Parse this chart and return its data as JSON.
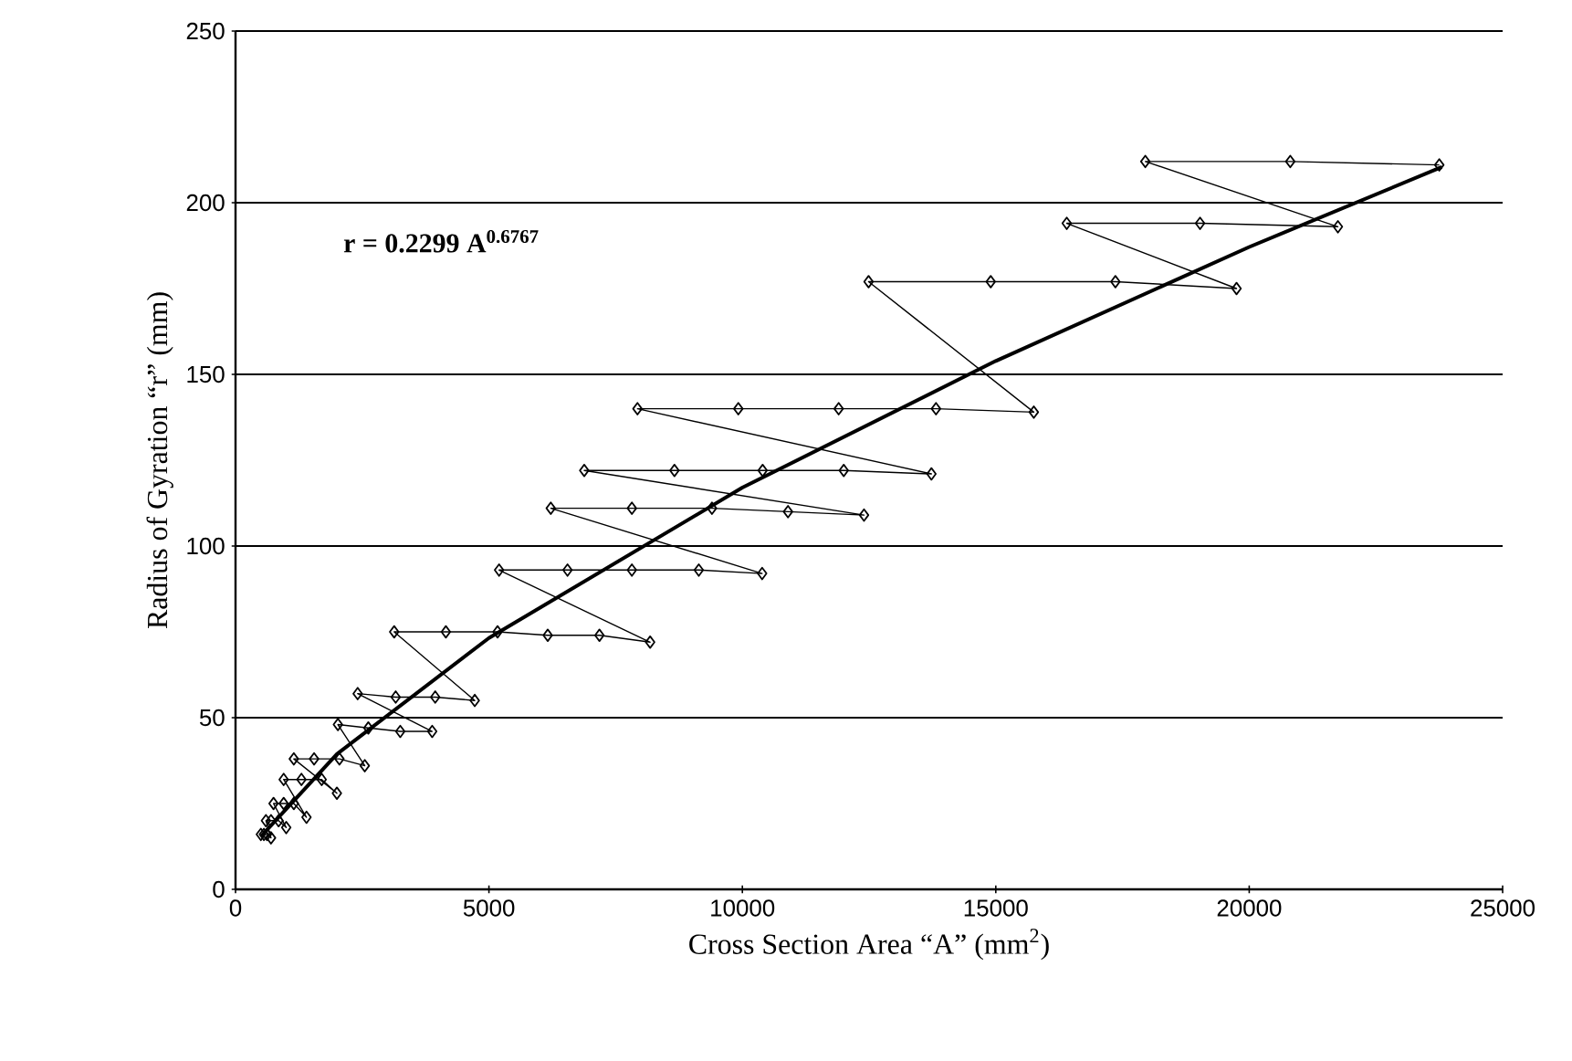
{
  "chart_data": {
    "type": "line",
    "xlabel": "Cross Section Area “A” (mm$^{2}$)",
    "ylabel": "Radius of Gyration “r” (mm)",
    "annotations": [
      "r = 0.2299 A$^{0.6767}$"
    ],
    "xlim": [
      0,
      25000
    ],
    "xticks": [
      0,
      5000,
      10000,
      15000,
      20000,
      25000
    ],
    "ylim": [
      0,
      250
    ],
    "yticks": [
      0,
      50,
      100,
      150,
      200,
      250
    ],
    "grid": "y",
    "marker": "diamond",
    "series": [
      {
        "color": "#000000",
        "x": [
          500,
          560,
          620,
          700,
          600,
          700,
          850,
          1000,
          750,
          950,
          1150,
          1400,
          950,
          1300,
          1700,
          2000,
          1150,
          1550,
          2050,
          2550,
          2020,
          2620,
          3250,
          3880,
          2410,
          3160,
          3940,
          4720,
          3130,
          4150,
          5170,
          6160,
          7180,
          8180,
          5200,
          6550,
          7820,
          9140,
          10390,
          6220,
          7820,
          9400,
          10900,
          12400,
          6880,
          8660,
          10400,
          12000,
          13730,
          7930,
          9920,
          11900,
          13820,
          15750,
          12490,
          14900,
          17360,
          19750,
          16400,
          19030,
          21750,
          17950,
          20810,
          23750
        ],
        "values": [
          16,
          16,
          16,
          15,
          20,
          20,
          20,
          18,
          25,
          25,
          25,
          21,
          32,
          32,
          32,
          28,
          38,
          38,
          38,
          36,
          48,
          47,
          46,
          46,
          57,
          56,
          56,
          55,
          75,
          75,
          75,
          74,
          74,
          72,
          93,
          93,
          93,
          93,
          92,
          111,
          111,
          111,
          110,
          109,
          122,
          122,
          122,
          122,
          121,
          140,
          140,
          140,
          140,
          139,
          177,
          177,
          177,
          175,
          194,
          194,
          193,
          212,
          212,
          211
        ]
      },
      {
        "type": "line",
        "color": "#000000",
        "marker": "none",
        "x": [
          500,
          2000,
          5000,
          10000,
          15000,
          20000,
          23800
        ],
        "values": [
          15.4,
          39.4,
          73.2,
          117.0,
          153.9,
          187.1,
          210.4
        ]
      }
    ]
  }
}
